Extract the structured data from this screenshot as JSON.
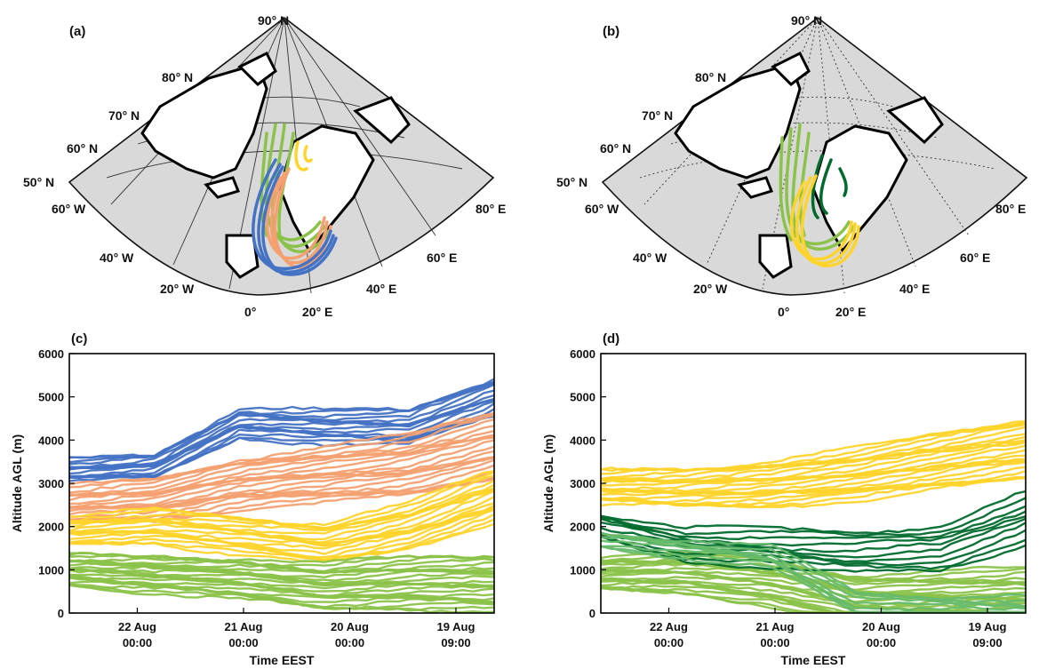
{
  "panels": {
    "a": "(a)",
    "b": "(b)",
    "c": "(c)",
    "d": "(d)"
  },
  "maps": {
    "lat_labels": [
      "90° N",
      "80° N",
      "70° N",
      "60° N",
      "50° N"
    ],
    "lon_labels": [
      "60° W",
      "40° W",
      "20° W",
      "0°",
      "20° E",
      "40° E",
      "60° E",
      "80° E"
    ],
    "land_color": "#ffffff",
    "sea_color": "#d9d9d9",
    "map_a_series_colors": [
      "#8bc34a",
      "#f4a070",
      "#4472c4",
      "#ffd42a"
    ],
    "map_b_series_colors": [
      "#8bc34a",
      "#006b2d",
      "#ffd42a"
    ]
  },
  "chart_data": [
    {
      "type": "line",
      "panel": "(c)",
      "xlabel": "Time EEST",
      "ylabel": "Altitude AGL (m)",
      "ylim": [
        0,
        6000
      ],
      "yticks": [
        0,
        1000,
        2000,
        3000,
        4000,
        5000,
        6000
      ],
      "x_direction": "time runs backward, left = latest",
      "xticks": [
        {
          "line1": "22 Aug",
          "line2": "00:00"
        },
        {
          "line1": "21 Aug",
          "line2": "00:00"
        },
        {
          "line1": "20 Aug",
          "line2": "00:00"
        },
        {
          "line1": "19 Aug",
          "line2": "09:00"
        }
      ],
      "x_hours": [
        0,
        24,
        48,
        72,
        96
      ],
      "series": [
        {
          "color": "#4472c4",
          "count": 16,
          "center": [
            3300,
            3400,
            4400,
            4300,
            4300,
            5000
          ],
          "spread": 350
        },
        {
          "color": "#f4a070",
          "count": 20,
          "center": [
            2500,
            2600,
            3000,
            3200,
            3400,
            3900
          ],
          "spread": 600
        },
        {
          "color": "#ffd42a",
          "count": 18,
          "center": [
            1900,
            2000,
            1800,
            1600,
            2000,
            2700
          ],
          "spread": 450
        },
        {
          "color": "#8bc34a",
          "count": 25,
          "center": [
            1000,
            900,
            800,
            600,
            700,
            700
          ],
          "spread": 500
        }
      ]
    },
    {
      "type": "line",
      "panel": "(d)",
      "xlabel": "Time EEST",
      "ylabel": "Altitude AGL (m)",
      "ylim": [
        0,
        6000
      ],
      "yticks": [
        0,
        1000,
        2000,
        3000,
        4000,
        5000,
        6000
      ],
      "x_direction": "time runs backward, left = latest",
      "xticks": [
        {
          "line1": "22 Aug",
          "line2": "00:00"
        },
        {
          "line1": "21 Aug",
          "line2": "00:00"
        },
        {
          "line1": "20 Aug",
          "line2": "00:00"
        },
        {
          "line1": "19 Aug",
          "line2": "09:00"
        }
      ],
      "x_hours": [
        0,
        24,
        48,
        72,
        96
      ],
      "series": [
        {
          "color": "#ffd42a",
          "count": 22,
          "center": [
            2900,
            2900,
            3000,
            3200,
            3500,
            3800
          ],
          "spread": 550
        },
        {
          "color": "#8bc34a",
          "count": 25,
          "center": [
            900,
            900,
            700,
            300,
            300,
            300
          ],
          "spread": 550
        },
        {
          "color": "#006b2d",
          "count": 10,
          "center": [
            2000,
            1600,
            1500,
            1400,
            1500,
            2200
          ],
          "spread": 450
        },
        {
          "color": "#66bb6a",
          "count": 8,
          "center": [
            1700,
            1500,
            1300,
            200,
            100,
            100
          ],
          "spread": 250
        }
      ]
    }
  ]
}
